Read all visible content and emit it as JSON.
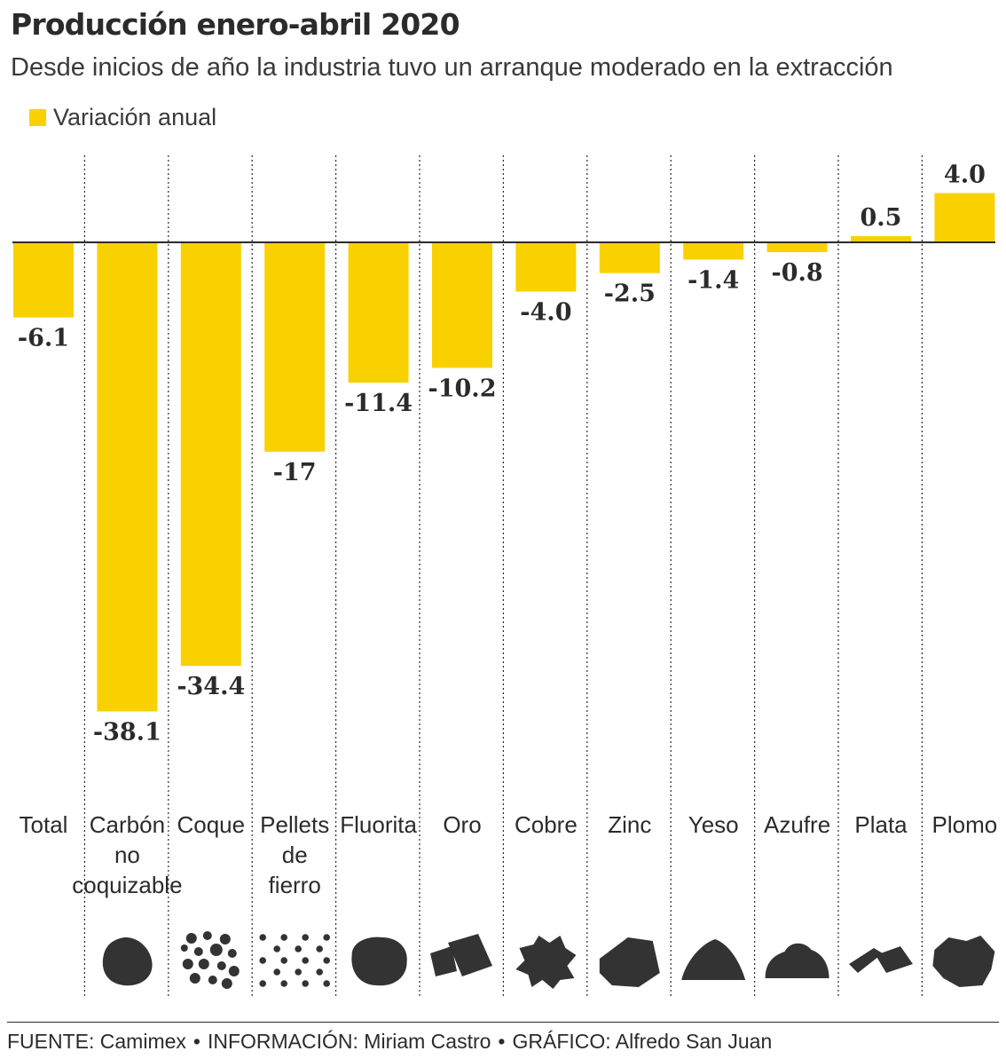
{
  "title": "Producción enero-abril 2020",
  "subtitle": "Desde inicios de año la industria tuvo un arranque moderado en la extracción",
  "legend": {
    "label": "Variación anual",
    "color": "#f9d100"
  },
  "colors": {
    "bar": "#f9d100",
    "text": "#2b2b2b",
    "icon": "#333333"
  },
  "chart_data": {
    "type": "bar",
    "categories": [
      "Total",
      "Carbón no coquizable",
      "Coque",
      "Pellets de fierro",
      "Fluorita",
      "Oro",
      "Cobre",
      "Zinc",
      "Yeso",
      "Azufre",
      "Plata",
      "Plomo"
    ],
    "category_lines": [
      [
        "Total"
      ],
      [
        "Carbón",
        "no",
        "coquizable"
      ],
      [
        "Coque"
      ],
      [
        "Pellets",
        "de",
        "fierro"
      ],
      [
        "Fluorita"
      ],
      [
        "Oro"
      ],
      [
        "Cobre"
      ],
      [
        "Zinc"
      ],
      [
        "Yeso"
      ],
      [
        "Azufre"
      ],
      [
        "Plata"
      ],
      [
        "Plomo"
      ]
    ],
    "values": [
      -6.1,
      -38.1,
      -34.4,
      -17,
      -11.4,
      -10.2,
      -4.0,
      -2.5,
      -1.4,
      -0.8,
      0.5,
      4.0
    ],
    "value_labels": [
      "-6.1",
      "-38.1",
      "-34.4",
      "-17",
      "-11.4",
      "-10.2",
      "-4.0",
      "-2.5",
      "-1.4",
      "-0.8",
      "0.5",
      "4.0"
    ],
    "series": [
      {
        "name": "Variación anual"
      }
    ],
    "icons": [
      "",
      "coal-lump-icon",
      "coke-pieces-icon",
      "iron-pellets-icon",
      "fluorite-rock-icon",
      "gold-bars-icon",
      "copper-ore-icon",
      "zinc-rock-icon",
      "gypsum-powder-icon",
      "sulfur-pile-icon",
      "silver-bars-icon",
      "lead-ore-icon"
    ],
    "ylim": [
      -38.1,
      4.0
    ],
    "xlabel": "",
    "ylabel": "",
    "grid": false,
    "legend_position": "top-left"
  },
  "footer": {
    "source": "FUENTE: Camimex",
    "info": "INFORMACIÓN: Miriam Castro",
    "graphic": "GRÁFICO: Alfredo San Juan",
    "separator": "•"
  }
}
